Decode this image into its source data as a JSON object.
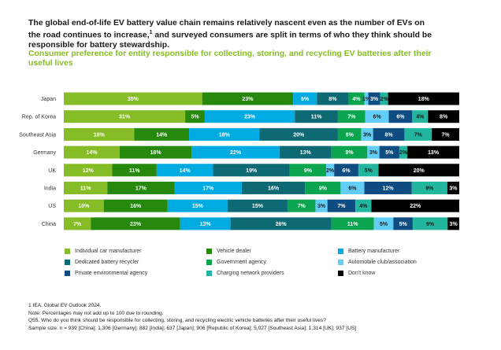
{
  "header": {
    "title_a": "The global end-of-life EV battery value chain remains relatively nascent even as the number of EVs on the road continues to increase,",
    "title_sup": "1",
    "title_b": " and surveyed consumers are split in terms of who they think should be responsible for battery stewardship.",
    "subtitle": "Consumer preference for entity responsible for collecting, storing, and recycling EV batteries after their useful lives"
  },
  "chart_data": {
    "type": "bar",
    "orientation": "horizontal",
    "stacked": true,
    "percent_stacked": true,
    "categories": [
      "Japan",
      "Rep. of Korea",
      "Southeast Asia",
      "Germany",
      "UK",
      "India",
      "US",
      "China"
    ],
    "series": [
      {
        "name": "Individual car manufacturer",
        "color": "#86bc25",
        "values": [
          35,
          31,
          18,
          14,
          12,
          11,
          10,
          7
        ]
      },
      {
        "name": "Vehicle dealer",
        "color": "#26890d",
        "values": [
          23,
          5,
          14,
          18,
          11,
          17,
          16,
          23
        ]
      },
      {
        "name": "Battery manufacturer",
        "color": "#00abe1",
        "values": [
          6,
          23,
          18,
          22,
          14,
          17,
          15,
          13
        ]
      },
      {
        "name": "Dedicated battery recycler",
        "color": "#0d6a74",
        "values": [
          8,
          11,
          20,
          13,
          19,
          16,
          15,
          26
        ]
      },
      {
        "name": "Government agency",
        "color": "#0ba54f",
        "values": [
          4,
          7,
          6,
          9,
          9,
          9,
          7,
          11
        ]
      },
      {
        "name": "Automobile club/association",
        "color": "#62cdf6",
        "values": [
          1,
          6,
          3,
          3,
          2,
          6,
          3,
          5
        ]
      },
      {
        "name": "Private environmental agency",
        "color": "#0f4c81",
        "values": [
          3,
          6,
          8,
          5,
          6,
          12,
          7,
          5
        ]
      },
      {
        "name": "Charging network providers",
        "color": "#21b69d",
        "values": [
          2,
          4,
          7,
          2,
          5,
          9,
          4,
          9
        ]
      },
      {
        "name": "Don't know",
        "color": "#000000",
        "values": [
          18,
          8,
          7,
          13,
          20,
          3,
          22,
          3
        ]
      }
    ],
    "labels": [
      [
        "35%",
        "23%",
        "6%",
        "8%",
        "4%",
        "1%",
        "3%",
        "2%",
        "18%"
      ],
      [
        "31%",
        "5%",
        "23%",
        "11%",
        "7%",
        "6%",
        "6%",
        "4%",
        "8%"
      ],
      [
        "18%",
        "14%",
        "18%",
        "20%",
        "6%",
        "3%",
        "8%",
        "7%",
        "7%"
      ],
      [
        "14%",
        "18%",
        "22%",
        "13%",
        "9%",
        "3%",
        "5%",
        "2%",
        "13%"
      ],
      [
        "12%",
        "11%",
        "14%",
        "19%",
        "9%",
        "2%",
        "6%",
        "5%",
        "20%"
      ],
      [
        "11%",
        "17%",
        "17%",
        "16%",
        "9%",
        "6%",
        "12%",
        "9%",
        "3%"
      ],
      [
        "10%",
        "16%",
        "15%",
        "15%",
        "7%",
        "3%",
        "7%",
        "4%",
        "22%"
      ],
      [
        "7%",
        "23%",
        "13%",
        "26%",
        "11%",
        "5%",
        "5%",
        "9%",
        "3%"
      ]
    ],
    "legend_position": "bottom",
    "grid": false
  },
  "legend_layout": [
    [
      "Individual car manufacturer",
      "Vehicle dealer",
      "Battery manufacturer"
    ],
    [
      "Dedicated battery recycler",
      "Government agency",
      "Automobile club/association"
    ],
    [
      "Private environmental agency",
      "Charging network providers",
      "Don't know"
    ]
  ],
  "footnotes": {
    "line1": "1 IEA, Global EV Outlook 2024.",
    "line2": "Note: Percentages may not add up to 100 due to rounding.",
    "line3": "Q55. Who do you think should be responsible for collecting, storing, and recycling electric vehicle batteries after their useful lives?",
    "line4": "Sample size: n = 939 [China]; 1,306 [Germany]; 882 [India]; 637 [Japan]; 906 [Republic of Korea]; 5,027 [Southeast Asia]; 1,314 [UK]; 937 [US]"
  }
}
